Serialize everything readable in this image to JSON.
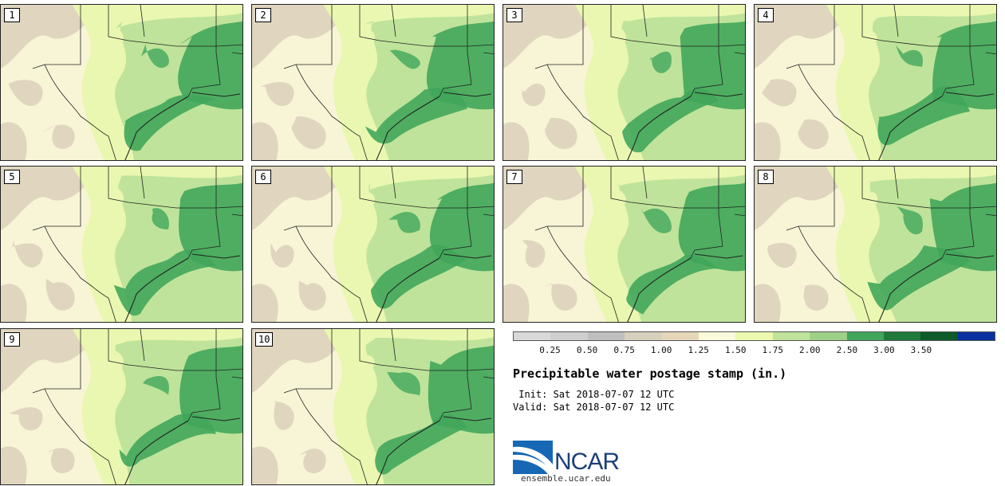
{
  "panels": [
    "1",
    "2",
    "3",
    "4",
    "5",
    "6",
    "7",
    "8",
    "9",
    "10"
  ],
  "colorbar": {
    "colors": [
      "#d9d9d9",
      "#cfcfcf",
      "#bfbfbf",
      "#d8d0bc",
      "#e6d7b8",
      "#fbfbdc",
      "#eaf8b0",
      "#bfe39a",
      "#9fd088",
      "#41a65b",
      "#217a3c",
      "#0d5a2a",
      "#0a2fa0"
    ],
    "ticks": [
      "0.25",
      "0.50",
      "0.75",
      "1.00",
      "1.25",
      "1.50",
      "1.75",
      "2.00",
      "2.50",
      "3.00",
      "3.50"
    ]
  },
  "title": "Precipitable water postage stamp (in.)",
  "init": " Init: Sat 2018-07-07 12 UTC",
  "valid": "Valid: Sat 2018-07-07 12 UTC",
  "logo": {
    "name": "NCAR",
    "url": "ensemble.ucar.edu"
  }
}
